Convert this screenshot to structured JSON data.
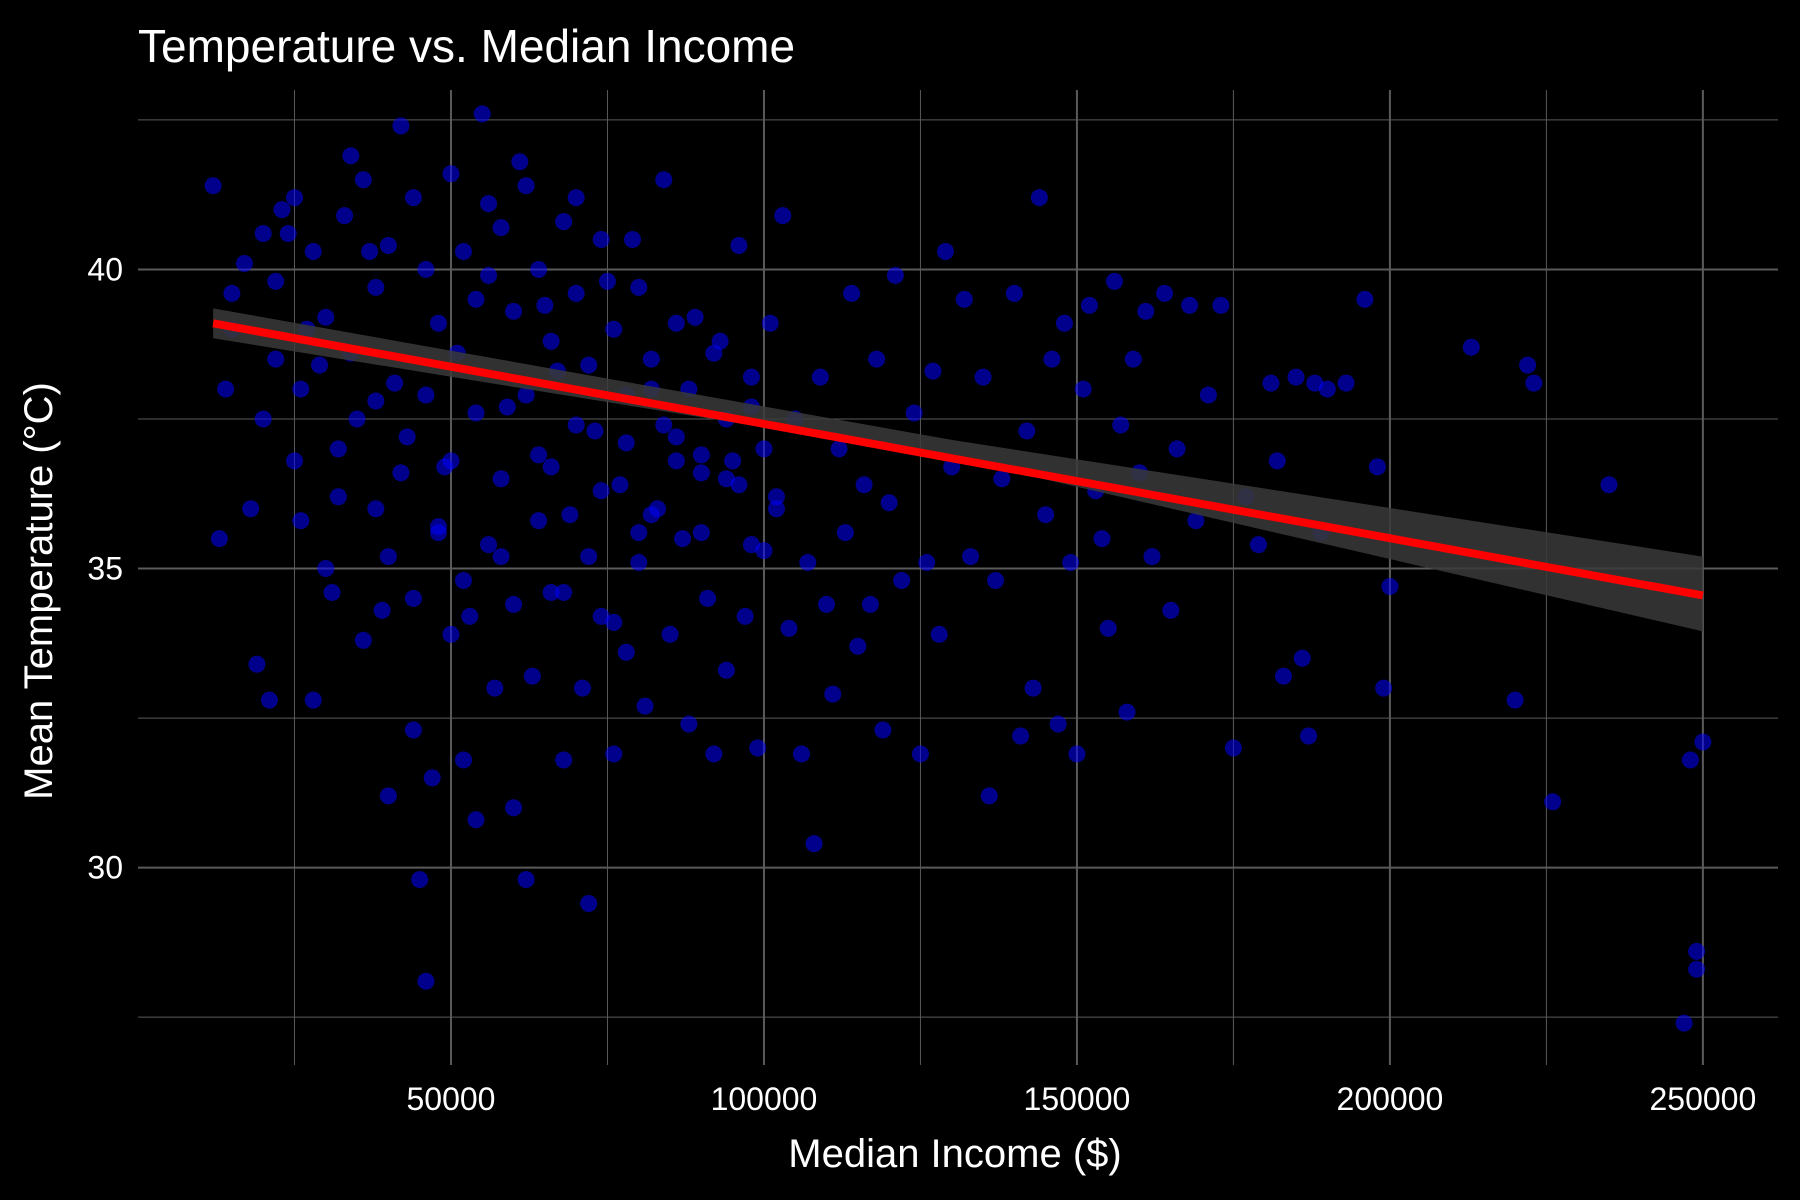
{
  "chart_data": {
    "type": "scatter",
    "title": "Temperature vs. Median Income",
    "xlabel": "Median Income ($)",
    "ylabel": "Mean Temperature (°C)",
    "xlim": [
      0,
      262000
    ],
    "ylim": [
      26.7,
      43.0
    ],
    "x_ticks": [
      50000,
      100000,
      150000,
      200000,
      250000
    ],
    "x_minor_ticks": [
      25000,
      75000,
      125000,
      175000,
      225000
    ],
    "y_ticks": [
      30,
      35,
      40
    ],
    "y_minor_ticks": [
      27.5,
      32.5,
      37.5,
      42.5
    ],
    "grid": true,
    "background": "#000000",
    "grid_color": "#5a5a5a",
    "point_color": "#0000ff",
    "trend_color": "#ff0000",
    "ci_color": "#3a3a3a",
    "trend_line": {
      "x": [
        12000,
        250000
      ],
      "y": [
        39.1,
        34.55
      ]
    },
    "confidence_band": {
      "x": [
        12000,
        130000,
        250000
      ],
      "lower": [
        38.85,
        36.85,
        33.95
      ],
      "upper": [
        39.35,
        37.15,
        35.2
      ]
    },
    "points": [
      [
        12000,
        41.4
      ],
      [
        13000,
        35.5
      ],
      [
        14000,
        38.0
      ],
      [
        15000,
        39.6
      ],
      [
        17000,
        40.1
      ],
      [
        18000,
        36.0
      ],
      [
        19000,
        33.4
      ],
      [
        20000,
        37.5
      ],
      [
        21000,
        32.8
      ],
      [
        22000,
        38.5
      ],
      [
        23000,
        41.0
      ],
      [
        24000,
        40.6
      ],
      [
        25000,
        36.8
      ],
      [
        26000,
        35.8
      ],
      [
        27000,
        39.0
      ],
      [
        28000,
        32.8
      ],
      [
        29000,
        38.4
      ],
      [
        30000,
        35.0
      ],
      [
        31000,
        34.6
      ],
      [
        32000,
        36.2
      ],
      [
        34000,
        41.9
      ],
      [
        35000,
        37.5
      ],
      [
        36000,
        33.8
      ],
      [
        37000,
        40.3
      ],
      [
        38000,
        36.0
      ],
      [
        39000,
        34.3
      ],
      [
        40000,
        31.2
      ],
      [
        41000,
        38.1
      ],
      [
        42000,
        42.4
      ],
      [
        43000,
        37.2
      ],
      [
        44000,
        32.3
      ],
      [
        45000,
        29.8
      ],
      [
        46000,
        28.1
      ],
      [
        47000,
        31.5
      ],
      [
        48000,
        35.6
      ],
      [
        49000,
        36.7
      ],
      [
        50000,
        33.9
      ],
      [
        51000,
        38.6
      ],
      [
        52000,
        31.8
      ],
      [
        53000,
        34.2
      ],
      [
        54000,
        30.8
      ],
      [
        55000,
        42.6
      ],
      [
        56000,
        39.9
      ],
      [
        57000,
        33.0
      ],
      [
        58000,
        35.2
      ],
      [
        59000,
        37.7
      ],
      [
        60000,
        31.0
      ],
      [
        61000,
        41.8
      ],
      [
        62000,
        29.8
      ],
      [
        63000,
        33.2
      ],
      [
        64000,
        36.9
      ],
      [
        65000,
        39.4
      ],
      [
        66000,
        34.6
      ],
      [
        67000,
        38.3
      ],
      [
        68000,
        31.8
      ],
      [
        69000,
        35.9
      ],
      [
        70000,
        41.2
      ],
      [
        71000,
        33.0
      ],
      [
        72000,
        29.4
      ],
      [
        73000,
        37.3
      ],
      [
        74000,
        34.2
      ],
      [
        75000,
        39.8
      ],
      [
        76000,
        31.9
      ],
      [
        77000,
        36.4
      ],
      [
        78000,
        33.6
      ],
      [
        79000,
        40.5
      ],
      [
        80000,
        35.1
      ],
      [
        81000,
        32.7
      ],
      [
        82000,
        38.0
      ],
      [
        83000,
        36.0
      ],
      [
        84000,
        41.5
      ],
      [
        85000,
        33.9
      ],
      [
        86000,
        37.2
      ],
      [
        87000,
        35.5
      ],
      [
        88000,
        32.4
      ],
      [
        89000,
        39.2
      ],
      [
        90000,
        36.6
      ],
      [
        91000,
        34.5
      ],
      [
        92000,
        31.9
      ],
      [
        93000,
        38.8
      ],
      [
        94000,
        33.3
      ],
      [
        95000,
        36.8
      ],
      [
        96000,
        40.4
      ],
      [
        97000,
        34.2
      ],
      [
        98000,
        37.7
      ],
      [
        99000,
        32.0
      ],
      [
        100000,
        35.3
      ],
      [
        101000,
        39.1
      ],
      [
        102000,
        36.2
      ],
      [
        103000,
        40.9
      ],
      [
        104000,
        34.0
      ],
      [
        105000,
        37.5
      ],
      [
        106000,
        31.9
      ],
      [
        107000,
        35.1
      ],
      [
        108000,
        30.4
      ],
      [
        109000,
        38.2
      ],
      [
        110000,
        34.4
      ],
      [
        111000,
        32.9
      ],
      [
        112000,
        37.0
      ],
      [
        113000,
        35.6
      ],
      [
        114000,
        39.6
      ],
      [
        115000,
        33.7
      ],
      [
        116000,
        36.4
      ],
      [
        117000,
        34.4
      ],
      [
        118000,
        38.5
      ],
      [
        119000,
        32.3
      ],
      [
        120000,
        36.1
      ],
      [
        121000,
        39.9
      ],
      [
        122000,
        34.8
      ],
      [
        124000,
        37.6
      ],
      [
        125000,
        31.9
      ],
      [
        126000,
        35.1
      ],
      [
        127000,
        38.3
      ],
      [
        128000,
        33.9
      ],
      [
        129000,
        40.3
      ],
      [
        130000,
        36.7
      ],
      [
        132000,
        39.5
      ],
      [
        133000,
        35.2
      ],
      [
        135000,
        38.2
      ],
      [
        136000,
        31.2
      ],
      [
        137000,
        34.8
      ],
      [
        138000,
        36.5
      ],
      [
        140000,
        39.6
      ],
      [
        141000,
        32.2
      ],
      [
        142000,
        37.3
      ],
      [
        143000,
        33.0
      ],
      [
        144000,
        41.2
      ],
      [
        145000,
        35.9
      ],
      [
        146000,
        38.5
      ],
      [
        147000,
        32.4
      ],
      [
        148000,
        39.1
      ],
      [
        149000,
        35.1
      ],
      [
        150000,
        31.9
      ],
      [
        151000,
        38.0
      ],
      [
        152000,
        39.4
      ],
      [
        153000,
        36.3
      ],
      [
        154000,
        35.5
      ],
      [
        155000,
        34.0
      ],
      [
        156000,
        39.8
      ],
      [
        157000,
        37.4
      ],
      [
        158000,
        32.6
      ],
      [
        159000,
        38.5
      ],
      [
        160000,
        36.6
      ],
      [
        161000,
        39.3
      ],
      [
        162000,
        35.2
      ],
      [
        164000,
        39.6
      ],
      [
        165000,
        34.3
      ],
      [
        166000,
        37.0
      ],
      [
        168000,
        39.4
      ],
      [
        169000,
        35.8
      ],
      [
        171000,
        37.9
      ],
      [
        173000,
        39.4
      ],
      [
        175000,
        32.0
      ],
      [
        177000,
        36.2
      ],
      [
        179000,
        35.4
      ],
      [
        181000,
        38.1
      ],
      [
        182000,
        36.8
      ],
      [
        183000,
        33.2
      ],
      [
        185000,
        38.2
      ],
      [
        186000,
        33.5
      ],
      [
        187000,
        32.2
      ],
      [
        188000,
        38.1
      ],
      [
        189000,
        35.6
      ],
      [
        190000,
        38.0
      ],
      [
        193000,
        38.1
      ],
      [
        196000,
        39.5
      ],
      [
        198000,
        36.7
      ],
      [
        199000,
        33.0
      ],
      [
        200000,
        34.7
      ],
      [
        213000,
        38.7
      ],
      [
        220000,
        32.8
      ],
      [
        222000,
        38.4
      ],
      [
        223000,
        38.1
      ],
      [
        226000,
        31.1
      ],
      [
        235000,
        36.4
      ],
      [
        247000,
        27.4
      ],
      [
        248000,
        31.8
      ],
      [
        249000,
        28.6
      ],
      [
        249000,
        28.3
      ],
      [
        250000,
        32.1
      ],
      [
        15000,
        39.0
      ],
      [
        20000,
        40.6
      ],
      [
        22000,
        39.8
      ],
      [
        25000,
        41.2
      ],
      [
        28000,
        40.3
      ],
      [
        30000,
        39.2
      ],
      [
        33000,
        40.9
      ],
      [
        36000,
        41.5
      ],
      [
        38000,
        39.7
      ],
      [
        40000,
        40.4
      ],
      [
        44000,
        41.2
      ],
      [
        46000,
        40.0
      ],
      [
        48000,
        39.1
      ],
      [
        50000,
        41.6
      ],
      [
        52000,
        40.3
      ],
      [
        54000,
        39.5
      ],
      [
        56000,
        41.1
      ],
      [
        58000,
        40.7
      ],
      [
        60000,
        39.3
      ],
      [
        62000,
        41.4
      ],
      [
        64000,
        40.0
      ],
      [
        66000,
        38.8
      ],
      [
        68000,
        40.8
      ],
      [
        70000,
        39.6
      ],
      [
        72000,
        38.4
      ],
      [
        74000,
        40.5
      ],
      [
        76000,
        39.0
      ],
      [
        78000,
        37.9
      ],
      [
        80000,
        39.7
      ],
      [
        82000,
        38.5
      ],
      [
        84000,
        37.4
      ],
      [
        86000,
        39.1
      ],
      [
        88000,
        38.0
      ],
      [
        90000,
        36.9
      ],
      [
        92000,
        38.6
      ],
      [
        94000,
        37.5
      ],
      [
        96000,
        36.4
      ],
      [
        98000,
        38.2
      ],
      [
        100000,
        37.0
      ],
      [
        102000,
        36.0
      ],
      [
        26000,
        38.0
      ],
      [
        32000,
        37.0
      ],
      [
        34000,
        38.6
      ],
      [
        38000,
        37.8
      ],
      [
        42000,
        36.6
      ],
      [
        46000,
        37.9
      ],
      [
        50000,
        36.8
      ],
      [
        54000,
        37.6
      ],
      [
        58000,
        36.5
      ],
      [
        62000,
        37.9
      ],
      [
        66000,
        36.7
      ],
      [
        70000,
        37.4
      ],
      [
        74000,
        36.3
      ],
      [
        78000,
        37.1
      ],
      [
        82000,
        35.9
      ],
      [
        86000,
        36.8
      ],
      [
        90000,
        35.6
      ],
      [
        94000,
        36.5
      ],
      [
        98000,
        35.4
      ],
      [
        40000,
        35.2
      ],
      [
        44000,
        34.5
      ],
      [
        48000,
        35.7
      ],
      [
        52000,
        34.8
      ],
      [
        56000,
        35.4
      ],
      [
        60000,
        34.4
      ],
      [
        64000,
        35.8
      ],
      [
        68000,
        34.6
      ],
      [
        72000,
        35.2
      ],
      [
        76000,
        34.1
      ],
      [
        80000,
        35.6
      ]
    ]
  }
}
